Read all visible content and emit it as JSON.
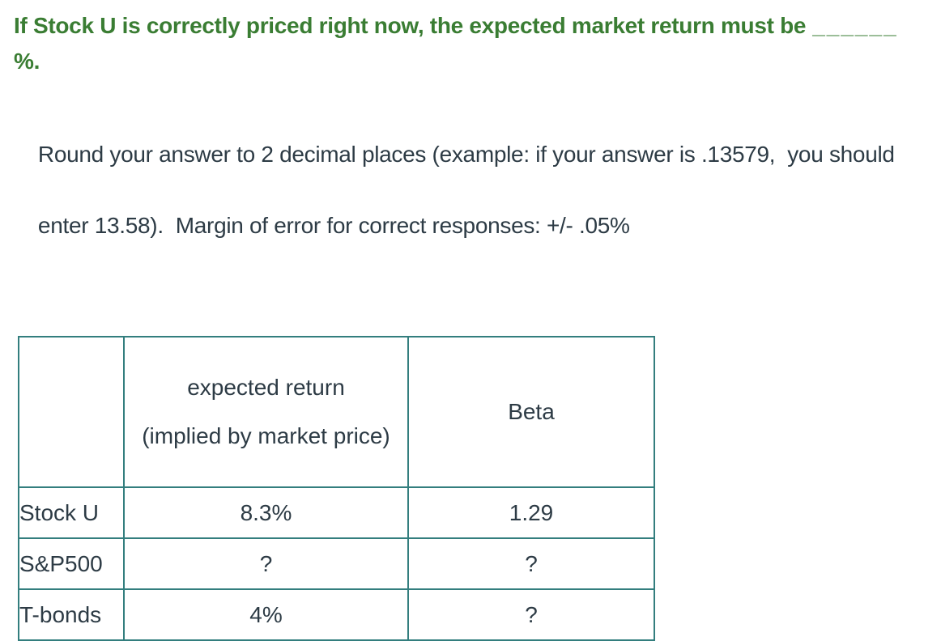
{
  "question": {
    "heading_line1": "If Stock U is correctly priced right now, the expected market return must be",
    "heading_blank": "______",
    "heading_line2": "%.",
    "instructions_line1": "Round your answer to 2 decimal places (example: if your answer is .13579,  you should",
    "instructions_line2": "enter 13.58).  Margin of error for correct responses: +/- .05%"
  },
  "table": {
    "header": {
      "corner": "",
      "expected_return_line1": "expected return",
      "expected_return_line2": "(implied by market price)",
      "beta": "Beta"
    },
    "rows": [
      {
        "label": "Stock U",
        "expected_return": "8.3%",
        "beta": "1.29"
      },
      {
        "label": "S&P500",
        "expected_return": "?",
        "beta": "?"
      },
      {
        "label": "T-bonds",
        "expected_return": "4%",
        "beta": "?"
      }
    ]
  },
  "colors": {
    "heading_green": "#3a7d33",
    "body_text_slate": "#2d3b45",
    "table_border_teal": "#337e7e"
  }
}
